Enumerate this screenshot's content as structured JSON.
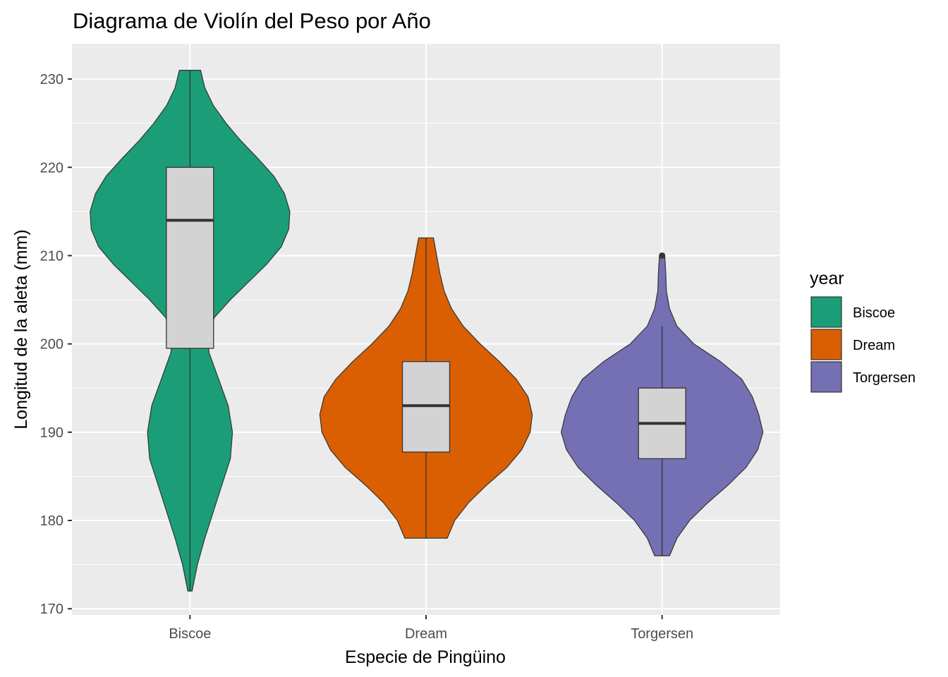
{
  "chart_data": {
    "type": "violin",
    "title": "Diagrama de Violín del Peso por Año",
    "xlabel": "Especie de Pingüino",
    "ylabel": "Longitud de la aleta (mm)",
    "categories": [
      "Biscoe",
      "Dream",
      "Torgersen"
    ],
    "ylim": [
      169.3,
      234
    ],
    "yticks": [
      170,
      180,
      190,
      200,
      210,
      220,
      230
    ],
    "grid": true,
    "legend": {
      "title": "year",
      "position": "right",
      "entries": [
        "Biscoe",
        "Dream",
        "Torgersen"
      ]
    },
    "colors": {
      "Biscoe": "#1b9e77",
      "Dream": "#d95f02",
      "Torgersen": "#7570b3",
      "box_fill": "#d3d3d3",
      "panel": "#ebebeb"
    },
    "series": [
      {
        "name": "Biscoe",
        "min": 172,
        "max": 231,
        "box": {
          "q1": 199.5,
          "median": 214,
          "q3": 220,
          "whisker_low": 172,
          "whisker_high": 231
        },
        "outliers": [],
        "density": [
          [
            172,
            0.02
          ],
          [
            175,
            0.07
          ],
          [
            178,
            0.14
          ],
          [
            181,
            0.22
          ],
          [
            184,
            0.3
          ],
          [
            187,
            0.38
          ],
          [
            190,
            0.4
          ],
          [
            193,
            0.36
          ],
          [
            196,
            0.27
          ],
          [
            199,
            0.18
          ],
          [
            201,
            0.16
          ],
          [
            203,
            0.23
          ],
          [
            205,
            0.38
          ],
          [
            207,
            0.55
          ],
          [
            209,
            0.72
          ],
          [
            211,
            0.86
          ],
          [
            213,
            0.93
          ],
          [
            215,
            0.94
          ],
          [
            217,
            0.89
          ],
          [
            219,
            0.79
          ],
          [
            221,
            0.64
          ],
          [
            223,
            0.48
          ],
          [
            225,
            0.34
          ],
          [
            227,
            0.22
          ],
          [
            229,
            0.14
          ],
          [
            231,
            0.1
          ]
        ]
      },
      {
        "name": "Dream",
        "min": 178,
        "max": 212,
        "box": {
          "q1": 187.75,
          "median": 193,
          "q3": 198,
          "whisker_low": 178,
          "whisker_high": 212
        },
        "outliers": [],
        "density": [
          [
            178,
            0.2
          ],
          [
            180,
            0.27
          ],
          [
            182,
            0.4
          ],
          [
            184,
            0.57
          ],
          [
            186,
            0.76
          ],
          [
            188,
            0.9
          ],
          [
            190,
            0.98
          ],
          [
            192,
            1.0
          ],
          [
            194,
            0.96
          ],
          [
            196,
            0.85
          ],
          [
            198,
            0.69
          ],
          [
            200,
            0.51
          ],
          [
            202,
            0.35
          ],
          [
            204,
            0.24
          ],
          [
            206,
            0.17
          ],
          [
            208,
            0.13
          ],
          [
            210,
            0.1
          ],
          [
            212,
            0.07
          ]
        ]
      },
      {
        "name": "Torgersen",
        "min": 176,
        "max": 210,
        "box": {
          "q1": 187,
          "median": 191,
          "q3": 195,
          "whisker_low": 176,
          "whisker_high": 202
        },
        "outliers": [
          210
        ],
        "density": [
          [
            176,
            0.07
          ],
          [
            178,
            0.14
          ],
          [
            180,
            0.26
          ],
          [
            182,
            0.43
          ],
          [
            184,
            0.62
          ],
          [
            186,
            0.79
          ],
          [
            188,
            0.9
          ],
          [
            190,
            0.95
          ],
          [
            192,
            0.91
          ],
          [
            194,
            0.85
          ],
          [
            196,
            0.75
          ],
          [
            198,
            0.55
          ],
          [
            200,
            0.3
          ],
          [
            202,
            0.14
          ],
          [
            204,
            0.07
          ],
          [
            206,
            0.04
          ],
          [
            208,
            0.035
          ],
          [
            210,
            0.025
          ]
        ]
      }
    ]
  }
}
